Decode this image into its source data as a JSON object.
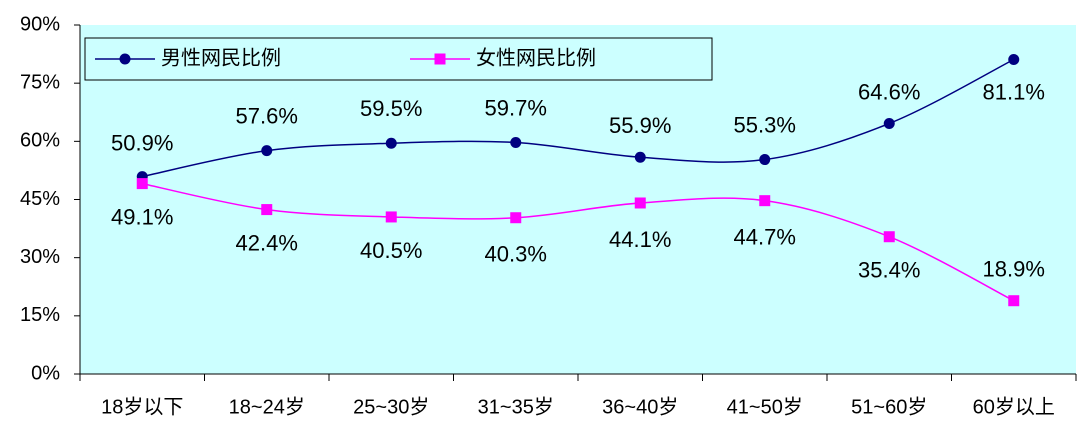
{
  "chart_data": {
    "type": "line",
    "categories": [
      "18岁以下",
      "18~24岁",
      "25~30岁",
      "31~35岁",
      "36~40岁",
      "41~50岁",
      "51~60岁",
      "60岁以上"
    ],
    "series": [
      {
        "name": "男性网民比例",
        "color": "#000080",
        "marker": "circle",
        "values": [
          50.9,
          57.6,
          59.5,
          59.7,
          55.9,
          55.3,
          64.6,
          81.1
        ],
        "value_labels": [
          "50.9%",
          "57.6%",
          "59.5%",
          "59.7%",
          "55.9%",
          "55.3%",
          "64.6%",
          "81.1%"
        ]
      },
      {
        "name": "女性网民比例",
        "color": "#ff00ff",
        "marker": "square",
        "values": [
          49.1,
          42.4,
          40.5,
          40.3,
          44.1,
          44.7,
          35.4,
          18.9
        ],
        "value_labels": [
          "49.1%",
          "42.4%",
          "40.5%",
          "40.3%",
          "44.1%",
          "44.7%",
          "35.4%",
          "18.9%"
        ]
      }
    ],
    "ylim": [
      0,
      90
    ],
    "yticks": [
      {
        "value": 0,
        "label": "0%"
      },
      {
        "value": 15,
        "label": "15%"
      },
      {
        "value": 30,
        "label": "30%"
      },
      {
        "value": 45,
        "label": "45%"
      },
      {
        "value": 60,
        "label": "60%"
      },
      {
        "value": 75,
        "label": "75%"
      },
      {
        "value": 90,
        "label": "90%"
      }
    ],
    "grid": false,
    "background": "#ccffff",
    "smooth": true
  }
}
